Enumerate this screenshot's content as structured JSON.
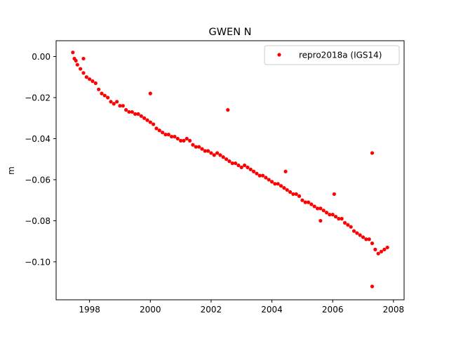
{
  "chart_data": {
    "type": "scatter",
    "title": "GWEN N",
    "xlabel": "",
    "ylabel": "m",
    "xlim": [
      1996.9,
      2008.35
    ],
    "ylim": [
      -0.1185,
      0.0077
    ],
    "xticks": [
      1998,
      2000,
      2002,
      2004,
      2006,
      2008
    ],
    "xtick_labels": [
      "1998",
      "2000",
      "2002",
      "2004",
      "2006",
      "2008"
    ],
    "yticks": [
      0.0,
      -0.02,
      -0.04,
      -0.06,
      -0.08,
      -0.1
    ],
    "ytick_labels": [
      "0.00",
      "−0.02",
      "−0.04",
      "−0.06",
      "−0.08",
      "−0.10"
    ],
    "grid": false,
    "legend_position": "top-right",
    "series": [
      {
        "name": "repro2018a (IGS14)",
        "color": "#ff0000",
        "marker": "dot",
        "x": [
          1997.45,
          1997.5,
          1997.55,
          1997.6,
          1997.7,
          1997.8,
          1997.9,
          1998.0,
          1998.1,
          1998.2,
          1998.3,
          1998.4,
          1998.5,
          1998.6,
          1998.7,
          1998.8,
          1998.9,
          1999.0,
          1999.1,
          1999.2,
          1999.3,
          1999.4,
          1999.5,
          1999.6,
          1999.7,
          1999.8,
          1999.9,
          2000.0,
          2000.1,
          2000.2,
          2000.3,
          2000.4,
          2000.5,
          2000.6,
          2000.7,
          2000.8,
          2000.9,
          2001.0,
          2001.1,
          2001.2,
          2001.3,
          2001.4,
          2001.5,
          2001.6,
          2001.7,
          2001.8,
          2001.9,
          2002.0,
          2002.1,
          2002.2,
          2002.3,
          2002.4,
          2002.5,
          2002.6,
          2002.7,
          2002.8,
          2002.9,
          2003.0,
          2003.1,
          2003.2,
          2003.3,
          2003.4,
          2003.5,
          2003.6,
          2003.7,
          2003.8,
          2003.9,
          2004.0,
          2004.1,
          2004.2,
          2004.3,
          2004.4,
          2004.5,
          2004.6,
          2004.7,
          2004.8,
          2004.9,
          2005.0,
          2005.1,
          2005.2,
          2005.3,
          2005.4,
          2005.5,
          2005.6,
          2005.7,
          2005.8,
          2005.9,
          2006.0,
          2006.1,
          2006.2,
          2006.3,
          2006.4,
          2006.5,
          2006.6,
          2006.7,
          2006.8,
          2006.9,
          2007.0,
          2007.1,
          2007.2,
          2007.3,
          2007.4,
          2007.5,
          2007.6,
          2007.7,
          2007.8,
          1997.8,
          2000.0,
          2002.55,
          2004.45,
          2006.05,
          2005.6,
          2007.3,
          2007.3
        ],
        "y": [
          0.002,
          -0.001,
          -0.002,
          -0.004,
          -0.006,
          -0.008,
          -0.01,
          -0.011,
          -0.012,
          -0.013,
          -0.016,
          -0.018,
          -0.019,
          -0.02,
          -0.022,
          -0.023,
          -0.022,
          -0.024,
          -0.024,
          -0.026,
          -0.027,
          -0.027,
          -0.028,
          -0.028,
          -0.029,
          -0.03,
          -0.031,
          -0.032,
          -0.033,
          -0.035,
          -0.036,
          -0.037,
          -0.038,
          -0.038,
          -0.039,
          -0.039,
          -0.04,
          -0.041,
          -0.041,
          -0.04,
          -0.041,
          -0.043,
          -0.044,
          -0.044,
          -0.045,
          -0.046,
          -0.046,
          -0.047,
          -0.048,
          -0.047,
          -0.048,
          -0.049,
          -0.05,
          -0.051,
          -0.052,
          -0.052,
          -0.053,
          -0.054,
          -0.053,
          -0.054,
          -0.055,
          -0.056,
          -0.057,
          -0.058,
          -0.058,
          -0.059,
          -0.06,
          -0.061,
          -0.062,
          -0.062,
          -0.063,
          -0.064,
          -0.065,
          -0.066,
          -0.067,
          -0.067,
          -0.068,
          -0.07,
          -0.071,
          -0.071,
          -0.072,
          -0.073,
          -0.074,
          -0.074,
          -0.075,
          -0.076,
          -0.077,
          -0.077,
          -0.078,
          -0.079,
          -0.079,
          -0.081,
          -0.082,
          -0.083,
          -0.085,
          -0.086,
          -0.087,
          -0.088,
          -0.089,
          -0.089,
          -0.091,
          -0.094,
          -0.096,
          -0.095,
          -0.094,
          -0.093,
          -0.001,
          -0.018,
          -0.026,
          -0.056,
          -0.067,
          -0.08,
          -0.047,
          -0.112
        ]
      }
    ]
  }
}
